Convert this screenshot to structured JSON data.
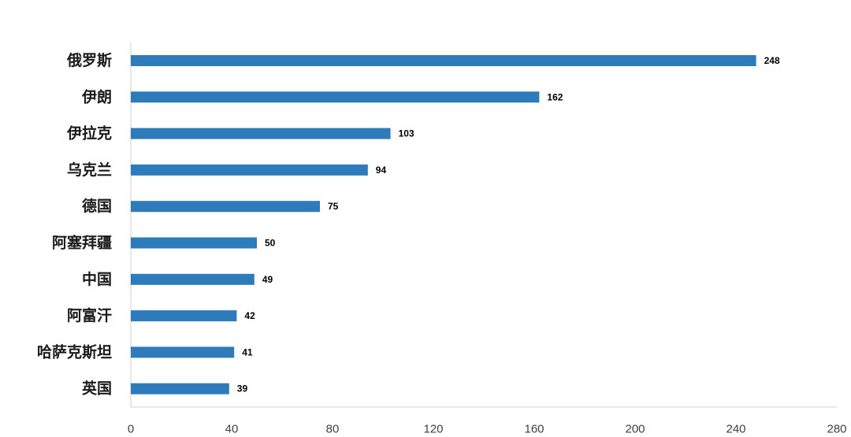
{
  "colors": {
    "bar": "#2e7bbb",
    "axis": "#d0d0d0",
    "text": "#1a1a1a"
  },
  "chart_data": {
    "type": "bar",
    "orientation": "horizontal",
    "title": "",
    "xlabel": "",
    "ylabel": "",
    "categories": [
      "俄罗斯",
      "伊朗",
      "伊拉克",
      "乌克兰",
      "德国",
      "阿塞拜疆",
      "中国",
      "阿富汗",
      "哈萨克斯坦",
      "英国"
    ],
    "values": [
      248,
      162,
      103,
      94,
      75,
      50,
      49,
      42,
      41,
      39
    ],
    "xlim": [
      0,
      280
    ],
    "xticks": [
      0,
      40,
      80,
      120,
      160,
      200,
      240,
      280
    ],
    "grid": false,
    "legend": "none",
    "data_labels": true
  }
}
